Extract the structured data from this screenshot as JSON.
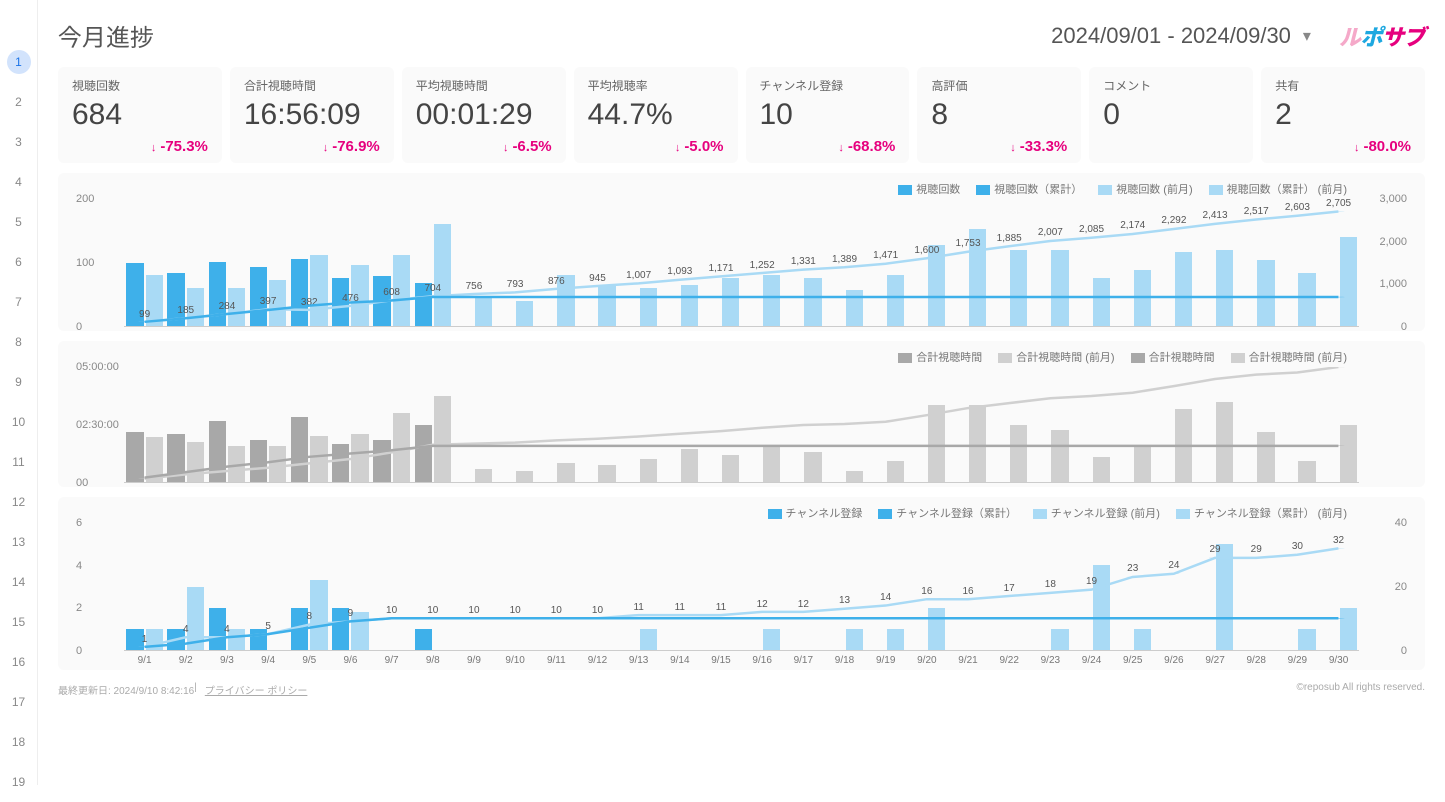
{
  "rownav": {
    "rows": 19,
    "active": 1
  },
  "header": {
    "title": "今月進捗",
    "daterange": "2024/09/01 - 2024/09/30",
    "logo_parts": [
      "ル",
      "ポ",
      "サブ"
    ]
  },
  "cards": [
    {
      "label": "視聴回数",
      "value": "684",
      "delta": "-75.3%"
    },
    {
      "label": "合計視聴時間",
      "value": "16:56:09",
      "delta": "-76.9%"
    },
    {
      "label": "平均視聴時間",
      "value": "00:01:29",
      "delta": "-6.5%"
    },
    {
      "label": "平均視聴率",
      "value": "44.7%",
      "delta": "-5.0%"
    },
    {
      "label": "チャンネル登録",
      "value": "10",
      "delta": "-68.8%"
    },
    {
      "label": "高評価",
      "value": "8",
      "delta": "-33.3%"
    },
    {
      "label": "コメント",
      "value": "0",
      "delta": null
    },
    {
      "label": "共有",
      "value": "2",
      "delta": "-80.0%"
    }
  ],
  "chart1": {
    "legend": [
      "視聴回数",
      "視聴回数（累計）",
      "視聴回数 (前月)",
      "視聴回数（累計） (前月)"
    ],
    "yL": {
      "max": 200,
      "ticks": [
        200,
        100,
        0
      ]
    },
    "yR": {
      "max": 3000,
      "ticks": [
        3000,
        2000,
        1000,
        0
      ]
    },
    "days": [
      "9/1",
      "9/2",
      "9/3",
      "9/4",
      "9/5",
      "9/6",
      "9/7",
      "9/8",
      "9/9",
      "9/10",
      "9/11",
      "9/12",
      "9/13",
      "9/14",
      "9/15",
      "9/16",
      "9/17",
      "9/18",
      "9/19",
      "9/20",
      "9/21",
      "9/22",
      "9/23",
      "9/24",
      "9/25",
      "9/26",
      "9/27",
      "9/28",
      "9/29",
      "9/30"
    ],
    "barsA": [
      99,
      84,
      101,
      93,
      105,
      76,
      78,
      68,
      0,
      0,
      0,
      0,
      0,
      0,
      0,
      0,
      0,
      0,
      0,
      0,
      0,
      0,
      0,
      0,
      0,
      0,
      0,
      0,
      0,
      0
    ],
    "barsB": [
      80,
      60,
      60,
      72,
      112,
      96,
      112,
      160,
      48,
      40,
      80,
      64,
      60,
      64,
      76,
      80,
      76,
      56,
      80,
      128,
      152,
      120,
      120,
      76,
      88,
      116,
      120,
      104,
      84,
      140
    ],
    "cumA": [
      99,
      183,
      284,
      377,
      482,
      554,
      603,
      684,
      684,
      684,
      684,
      684,
      684,
      684,
      684,
      684,
      684,
      684,
      684,
      684,
      684,
      684,
      684,
      684,
      684,
      684,
      684,
      684,
      684,
      684
    ],
    "cumB": [
      99,
      185,
      284,
      397,
      382,
      476,
      608,
      704,
      756,
      793,
      876,
      945,
      1007,
      1093,
      1171,
      1252,
      1331,
      1389,
      1471,
      1600,
      1753,
      1885,
      2007,
      2085,
      2174,
      2292,
      2413,
      2517,
      2603,
      2705
    ],
    "labels": [
      "99",
      "185",
      "284",
      "397",
      "382",
      "476",
      "608",
      "704",
      "756",
      "793",
      "876",
      "945",
      "1,007",
      "1,093",
      "1,171",
      "1,252",
      "1,331",
      "1,389",
      "1,471",
      "1,600",
      "1,753",
      "1,885",
      "2,007",
      "2,085",
      "2,174",
      "2,292",
      "2,413",
      "2,517",
      "2,603",
      "2,705"
    ],
    "colors": {
      "barA": "#3eb0ea",
      "barB": "#a9daf5",
      "lineA": "#3eb0ea",
      "lineB": "#a9daf5"
    }
  },
  "chart2": {
    "legend": [
      "合計視聴時間",
      "合計視聴時間 (前月)",
      "合計視聴時間",
      "合計視聴時間 (前月)"
    ],
    "yL": {
      "max": 300,
      "ticks": [
        "05:00:00",
        "02:30:00",
        "00"
      ]
    },
    "days_count": 30,
    "barsA": [
      130,
      125,
      160,
      110,
      170,
      100,
      110,
      150,
      0,
      0,
      0,
      0,
      0,
      0,
      0,
      0,
      0,
      0,
      0,
      0,
      0,
      0,
      0,
      0,
      0,
      0,
      0,
      0,
      0,
      0
    ],
    "barsB": [
      118,
      105,
      95,
      95,
      120,
      125,
      180,
      225,
      35,
      30,
      50,
      45,
      60,
      85,
      70,
      92,
      78,
      30,
      55,
      200,
      200,
      150,
      135,
      65,
      95,
      190,
      210,
      130,
      55,
      150
    ],
    "cumA": [
      8,
      18,
      28,
      36,
      46,
      52,
      58,
      66,
      66,
      66,
      66,
      66,
      66,
      66,
      66,
      66,
      66,
      66,
      66,
      66,
      66,
      66,
      66,
      66,
      66,
      66,
      66,
      66,
      66,
      66
    ],
    "cumB": [
      6,
      14,
      20,
      26,
      34,
      42,
      54,
      68,
      70,
      72,
      76,
      79,
      83,
      88,
      93,
      99,
      104,
      106,
      110,
      122,
      135,
      144,
      153,
      157,
      163,
      175,
      188,
      196,
      200,
      210
    ],
    "cumMax": 210,
    "colors": {
      "barA": "#a8a8a8",
      "barB": "#d0d0d0",
      "lineA": "#a8a8a8",
      "lineB": "#d0d0d0"
    }
  },
  "chart3": {
    "legend": [
      "チャンネル登録",
      "チャンネル登録（累計）",
      "チャンネル登録 (前月)",
      "チャンネル登録（累計） (前月)"
    ],
    "yL": {
      "max": 6,
      "ticks": [
        6,
        4,
        2,
        0
      ]
    },
    "yR": {
      "max": 40,
      "ticks": [
        40,
        20,
        0
      ]
    },
    "days": [
      "9/1",
      "9/2",
      "9/3",
      "9/4",
      "9/5",
      "9/6",
      "9/7",
      "9/8",
      "9/9",
      "9/10",
      "9/11",
      "9/12",
      "9/13",
      "9/14",
      "9/15",
      "9/16",
      "9/17",
      "9/18",
      "9/19",
      "9/20",
      "9/21",
      "9/22",
      "9/23",
      "9/24",
      "9/25",
      "9/26",
      "9/27",
      "9/28",
      "9/29",
      "9/30"
    ],
    "barsA": [
      1,
      1,
      2,
      1,
      2,
      2,
      0,
      1,
      0,
      0,
      0,
      0,
      0,
      0,
      0,
      0,
      0,
      0,
      0,
      0,
      0,
      0,
      0,
      0,
      0,
      0,
      0,
      0,
      0,
      0
    ],
    "barsB": [
      1,
      3,
      1,
      0,
      3.3,
      1.8,
      0,
      0,
      0,
      0,
      0,
      0,
      1,
      0,
      0,
      1,
      0,
      1,
      1,
      2,
      0,
      0,
      1,
      4,
      1,
      0,
      5,
      0,
      1,
      2
    ],
    "cumA": [
      1,
      2,
      4,
      5,
      7,
      9,
      10,
      10,
      10,
      10,
      10,
      10,
      10,
      10,
      10,
      10,
      10,
      10,
      10,
      10,
      10,
      10,
      10,
      10,
      10,
      10,
      10,
      10,
      10,
      10
    ],
    "cumB": [
      1,
      4,
      4,
      5,
      8,
      9,
      10,
      10,
      10,
      10,
      10,
      10,
      11,
      11,
      11,
      12,
      12,
      13,
      14,
      16,
      16,
      17,
      18,
      19,
      23,
      24,
      29,
      29,
      30,
      32
    ],
    "labels": [
      "1",
      "4",
      "4",
      "5",
      "8",
      "9",
      "10",
      "10",
      "10",
      "10",
      "10",
      "10",
      "11",
      "11",
      "11",
      "12",
      "12",
      "13",
      "14",
      "16",
      "16",
      "17",
      "18",
      "19",
      "23",
      "24",
      "29",
      "29",
      "30",
      "32"
    ],
    "colors": {
      "barA": "#3eb0ea",
      "barB": "#a9daf5",
      "lineA": "#3eb0ea",
      "lineB": "#a9daf5"
    }
  },
  "footer": {
    "updated": "最終更新日: 2024/9/10 8:42:16",
    "privacy": "プライバシー ポリシー",
    "copyright": "©reposub All rights reserved."
  }
}
